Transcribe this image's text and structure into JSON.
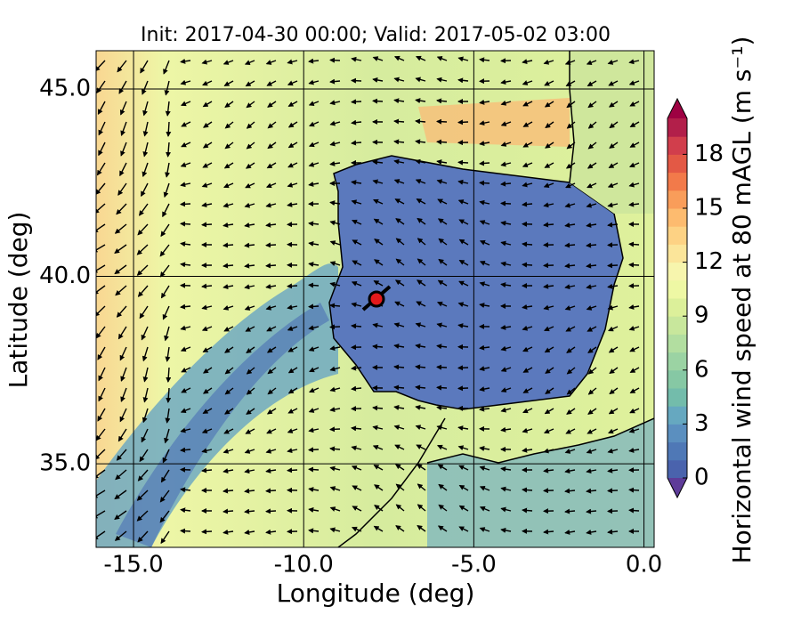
{
  "chart_data": {
    "type": "map",
    "title": "Init: 2017-04-30 00:00; Valid: 2017-05-02 03:00",
    "x_label": "Longitude (deg)",
    "y_label": "Latitude (deg)",
    "xlim": [
      -16.1,
      0.3
    ],
    "ylim": [
      32.77,
      46.02
    ],
    "xticks": [
      {
        "value": -15,
        "label": "-15.0"
      },
      {
        "value": -10,
        "label": "-10.0"
      },
      {
        "value": -5,
        "label": "-5.0"
      },
      {
        "value": 0,
        "label": "0.0"
      }
    ],
    "yticks": [
      {
        "value": 35,
        "label": "35.0"
      },
      {
        "value": 40,
        "label": "40.0"
      },
      {
        "value": 45,
        "label": "45.0"
      }
    ],
    "colorbar": {
      "label": "Horizontal wind speed at 80 mAGL (m s⁻¹)",
      "lim": [
        0,
        20
      ],
      "ticks": [
        0,
        3,
        6,
        9,
        12,
        15,
        18
      ],
      "colors": [
        "#4a63ad",
        "#4f78b6",
        "#5b8fbf",
        "#66a8c0",
        "#73bcab",
        "#86c8a4",
        "#9bd3a3",
        "#b2dea0",
        "#c8e79c",
        "#dcf09a",
        "#eef8a4",
        "#f7f5ad",
        "#fbe59a",
        "#fdd284",
        "#fdbb6f",
        "#f99d5a",
        "#f27a4a",
        "#e35945",
        "#d13e4c",
        "#b21f4a"
      ],
      "under_color": "#5e3c99",
      "over_color": "#9e0142"
    }
  }
}
